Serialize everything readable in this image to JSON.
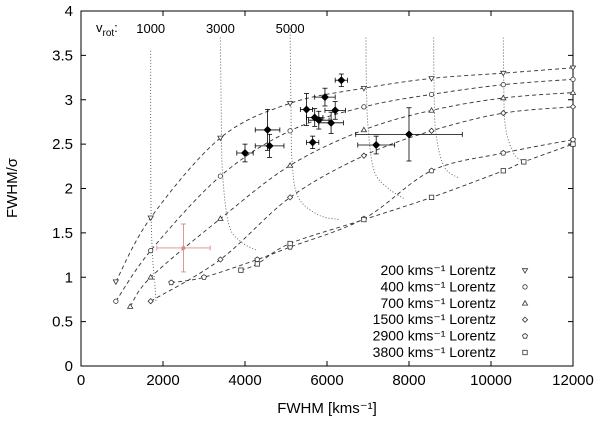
{
  "chart_data": {
    "type": "scatter",
    "xlabel": "FWHM [kms⁻¹]",
    "ylabel": "FWHM/σ",
    "xlim": [
      0,
      12000
    ],
    "ylim": [
      0,
      4
    ],
    "xticks": [
      "0",
      "2000",
      "4000",
      "6000",
      "8000",
      "10000",
      "12000"
    ],
    "yticks": [
      "0",
      "0.5",
      "1",
      "1.5",
      "2",
      "2.5",
      "3",
      "3.5",
      "4"
    ],
    "vrot_prefix": "v",
    "vrot_sub": "rot",
    "vrot_suffix": ":",
    "vrot_curves": [
      {
        "label": "1000",
        "x": [
          1700,
          1700,
          1710,
          1750,
          1800,
          1830
        ],
        "y": [
          3.55,
          2.6,
          1.7,
          1.2,
          0.93,
          0.73
        ]
      },
      {
        "label": "3000",
        "x": [
          3400,
          3420,
          3450,
          3600,
          3900,
          4300
        ],
        "y": [
          3.7,
          2.9,
          2.2,
          1.6,
          1.4,
          1.3
        ]
      },
      {
        "label": "5000",
        "x": [
          5100,
          5120,
          5150,
          5300,
          5800,
          6300
        ],
        "y": [
          3.8,
          3.0,
          2.3,
          1.9,
          1.7,
          1.65
        ]
      },
      {
        "label": "",
        "x": [
          6950,
          6960,
          7000,
          7150,
          7500,
          7900
        ],
        "y": [
          3.7,
          3.2,
          2.7,
          2.2,
          2.0,
          1.88
        ]
      },
      {
        "label": "",
        "x": [
          8600,
          8610,
          8650,
          8850,
          9200
        ],
        "y": [
          3.7,
          3.2,
          2.65,
          2.25,
          2.12
        ]
      },
      {
        "label": "",
        "x": [
          10300,
          10310,
          10350,
          10550,
          10800
        ],
        "y": [
          3.7,
          3.2,
          2.7,
          2.4,
          2.3
        ]
      }
    ],
    "series": [
      {
        "name": "200 kms⁻¹ Lorentz",
        "marker": "triangle-down",
        "x": [
          850,
          1700,
          3400,
          5100,
          6900,
          8550,
          10300,
          12000
        ],
        "y": [
          0.95,
          1.67,
          2.57,
          2.96,
          3.13,
          3.24,
          3.3,
          3.36
        ]
      },
      {
        "name": "400 kms⁻¹ Lorentz",
        "marker": "circle",
        "x": [
          850,
          1700,
          3400,
          5100,
          6900,
          8550,
          10300,
          12000
        ],
        "y": [
          0.73,
          1.3,
          2.14,
          2.65,
          2.92,
          3.06,
          3.17,
          3.23
        ]
      },
      {
        "name": "700 kms⁻¹ Lorentz",
        "marker": "triangle-up",
        "x": [
          1200,
          1700,
          3400,
          5100,
          6900,
          8550,
          10300,
          12000
        ],
        "y": [
          0.67,
          1.0,
          1.66,
          2.26,
          2.66,
          2.88,
          3.02,
          3.08
        ]
      },
      {
        "name": "1500 kms⁻¹ Lorentz",
        "marker": "diamond",
        "x": [
          1700,
          3400,
          5100,
          6900,
          8550,
          10300,
          12000
        ],
        "y": [
          0.73,
          1.2,
          1.9,
          2.37,
          2.65,
          2.85,
          2.92
        ]
      },
      {
        "name": "2900 kms⁻¹ Lorentz",
        "marker": "pentagon",
        "x": [
          2200,
          3000,
          4300,
          5100,
          6900,
          8550,
          10300,
          12000
        ],
        "y": [
          0.94,
          1.0,
          1.2,
          1.34,
          1.66,
          2.2,
          2.4,
          2.55
        ]
      },
      {
        "name": "3800 kms⁻¹ Lorentz",
        "marker": "square",
        "x": [
          3900,
          4300,
          5100,
          6900,
          8550,
          10300,
          10800,
          12000
        ],
        "y": [
          1.08,
          1.15,
          1.38,
          1.65,
          1.9,
          2.2,
          2.3,
          2.5
        ]
      }
    ],
    "observations": [
      {
        "x": 4000,
        "y": 2.4,
        "xerr": 200,
        "yerr": 0.1
      },
      {
        "x": 4550,
        "y": 2.66,
        "xerr": 300,
        "yerr": 0.23
      },
      {
        "x": 4600,
        "y": 2.48,
        "xerr": 350,
        "yerr": 0.13
      },
      {
        "x": 5500,
        "y": 2.89,
        "xerr": 150,
        "yerr": 0.18
      },
      {
        "x": 5700,
        "y": 2.8,
        "xerr": 200,
        "yerr": 0.1
      },
      {
        "x": 5800,
        "y": 2.77,
        "xerr": 250,
        "yerr": 0.1
      },
      {
        "x": 5950,
        "y": 3.03,
        "xerr": 250,
        "yerr": 0.1
      },
      {
        "x": 5650,
        "y": 2.52,
        "xerr": 150,
        "yerr": 0.07
      },
      {
        "x": 6100,
        "y": 2.74,
        "xerr": 300,
        "yerr": 0.12
      },
      {
        "x": 6200,
        "y": 2.88,
        "xerr": 250,
        "yerr": 0.1
      },
      {
        "x": 6350,
        "y": 3.22,
        "xerr": 150,
        "yerr": 0.07
      },
      {
        "x": 7200,
        "y": 2.49,
        "xerr": 450,
        "yerr": 0.1
      },
      {
        "x": 8000,
        "y": 2.61,
        "xerr": 1300,
        "yerr": 0.3
      }
    ],
    "highlight_point": {
      "x": 2500,
      "y": 1.33,
      "xerr": 650,
      "yerr": 0.27,
      "color": "#d98b8b"
    },
    "legend_position": "bottom-right"
  }
}
